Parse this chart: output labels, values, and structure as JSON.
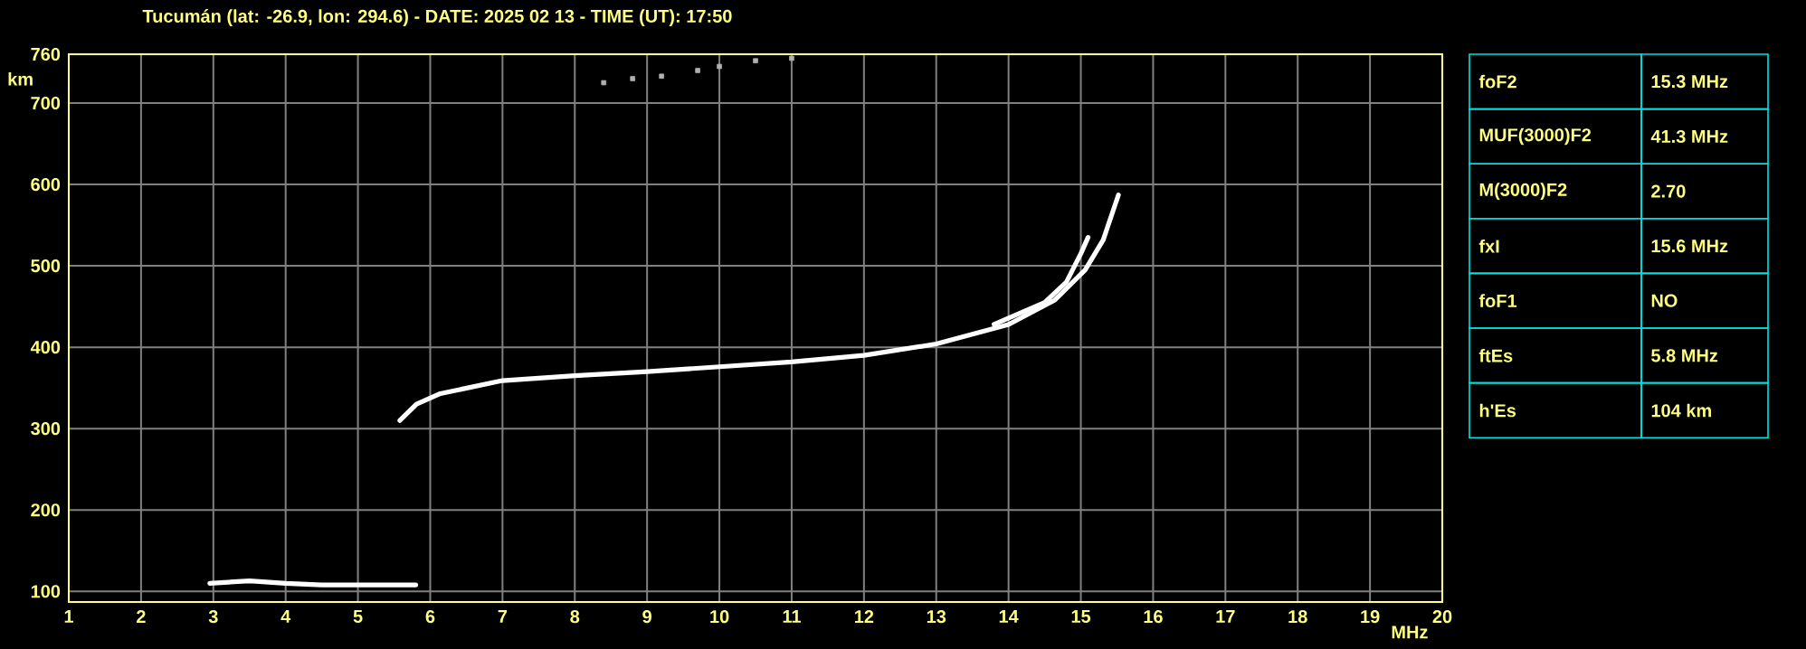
{
  "chart_data": [
    {
      "type": "line",
      "title": "Tucumán (lat: -26.9, lon: 294.6) - DATE: 2025 02 13 - TIME (UT): 17:50",
      "xlabel": "MHz",
      "ylabel": "km",
      "xlim": [
        1,
        20
      ],
      "xticks": [
        1,
        2,
        3,
        4,
        5,
        6,
        7,
        8,
        9,
        10,
        11,
        12,
        13,
        14,
        15,
        16,
        17,
        18,
        19,
        20
      ],
      "ylim": [
        87,
        760
      ],
      "yticks": [
        100,
        200,
        300,
        400,
        500,
        600,
        700,
        760
      ],
      "grid": true,
      "series": [
        {
          "color": "#ffffff",
          "x": [
            5.58,
            5.81,
            6.14,
            7.0,
            8.0,
            9.0,
            10.0,
            11.0,
            12.0,
            13.0,
            14.0,
            14.64,
            15.06,
            15.31,
            15.52
          ],
          "values": [
            310,
            330,
            343,
            359,
            365,
            370,
            376,
            382,
            390,
            404,
            428,
            458,
            495,
            532,
            587
          ]
        },
        {
          "color": "#ffffff",
          "x": [
            13.8,
            14.5,
            14.8,
            15.0,
            15.1
          ],
          "values": [
            428,
            455,
            480,
            515,
            535
          ]
        },
        {
          "color": "#ffffff",
          "x": [
            2.95,
            3.5,
            4.0,
            4.5,
            5.0,
            5.5,
            5.8
          ],
          "values": [
            110,
            113,
            110,
            108,
            108,
            108,
            108
          ]
        },
        {
          "type": "scatter",
          "color": "#b0b0b0",
          "x": [
            8.4,
            8.8,
            9.2,
            9.7,
            10.0,
            10.5,
            11.0
          ],
          "values": [
            725,
            730,
            733,
            740,
            745,
            752,
            755
          ]
        }
      ]
    },
    {
      "type": "other",
      "annotations": [
        "foF2",
        "15.3 MHz",
        "MUF(3000)F2",
        "41.3 MHz",
        "M(3000)F2",
        "2.70",
        "fxI",
        "15.6 MHz",
        "foF1",
        "NO",
        "ftEs",
        "5.8 MHz",
        "h'Es",
        "104 km"
      ]
    }
  ]
}
